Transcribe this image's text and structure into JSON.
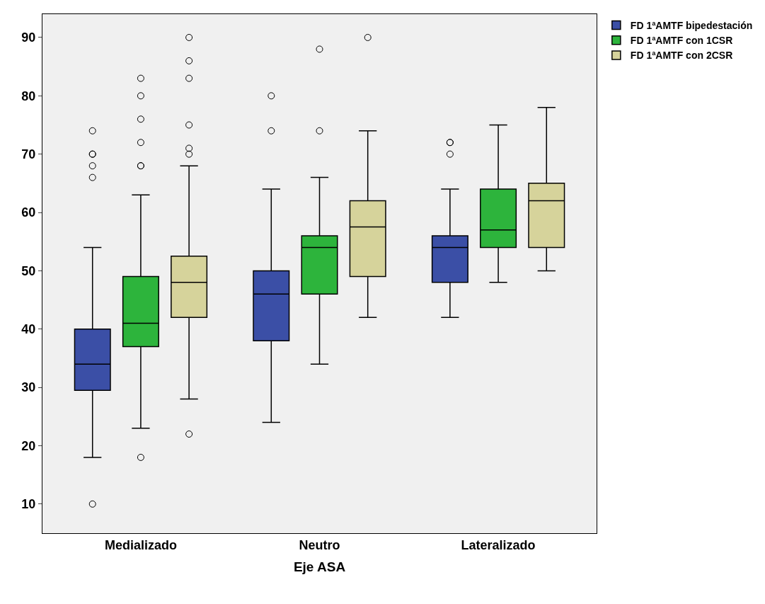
{
  "chart_data": {
    "type": "box",
    "xlabel": "Eje ASA",
    "categories": [
      "Medializado",
      "Neutro",
      "Lateralizado"
    ],
    "ylim": [
      5,
      94
    ],
    "yticks": [
      10,
      20,
      30,
      40,
      50,
      60,
      70,
      80,
      90
    ],
    "grid": false,
    "legend": "top right",
    "series": [
      {
        "name": "FD 1ªAMTF bipedestación",
        "color": "#3b4fa6",
        "boxes": [
          {
            "low": 18,
            "q1": 29.5,
            "median": 34,
            "q3": 40,
            "high": 54,
            "outliers": [
              10,
              66,
              68,
              70,
              70,
              74
            ]
          },
          {
            "low": 24,
            "q1": 38,
            "median": 46,
            "q3": 50,
            "high": 64,
            "outliers": [
              74,
              80
            ]
          },
          {
            "low": 42,
            "q1": 48,
            "median": 54,
            "q3": 56,
            "high": 64,
            "outliers": [
              70,
              72,
              72
            ]
          }
        ]
      },
      {
        "name": "FD 1ªAMTF con 1CSR",
        "color": "#2db43c",
        "boxes": [
          {
            "low": 23,
            "q1": 37,
            "median": 41,
            "q3": 49,
            "high": 63,
            "outliers": [
              18,
              68,
              68,
              72,
              76,
              80,
              83
            ]
          },
          {
            "low": 34,
            "q1": 46,
            "median": 54,
            "q3": 56,
            "high": 66,
            "outliers": [
              74,
              88
            ]
          },
          {
            "low": 48,
            "q1": 54,
            "median": 57,
            "q3": 64,
            "high": 75
          }
        ]
      },
      {
        "name": "FD 1ªAMTF con 2CSR",
        "color": "#d6d39b",
        "boxes": [
          {
            "low": 28,
            "q1": 42,
            "median": 48,
            "q3": 52.5,
            "high": 68,
            "outliers": [
              22,
              70,
              71,
              75,
              83,
              86,
              90
            ]
          },
          {
            "low": 42,
            "q1": 49,
            "median": 57.5,
            "q3": 62,
            "high": 74,
            "outliers": [
              90
            ]
          },
          {
            "low": 50,
            "q1": 54,
            "median": 62,
            "q3": 65,
            "high": 78
          }
        ]
      }
    ]
  }
}
